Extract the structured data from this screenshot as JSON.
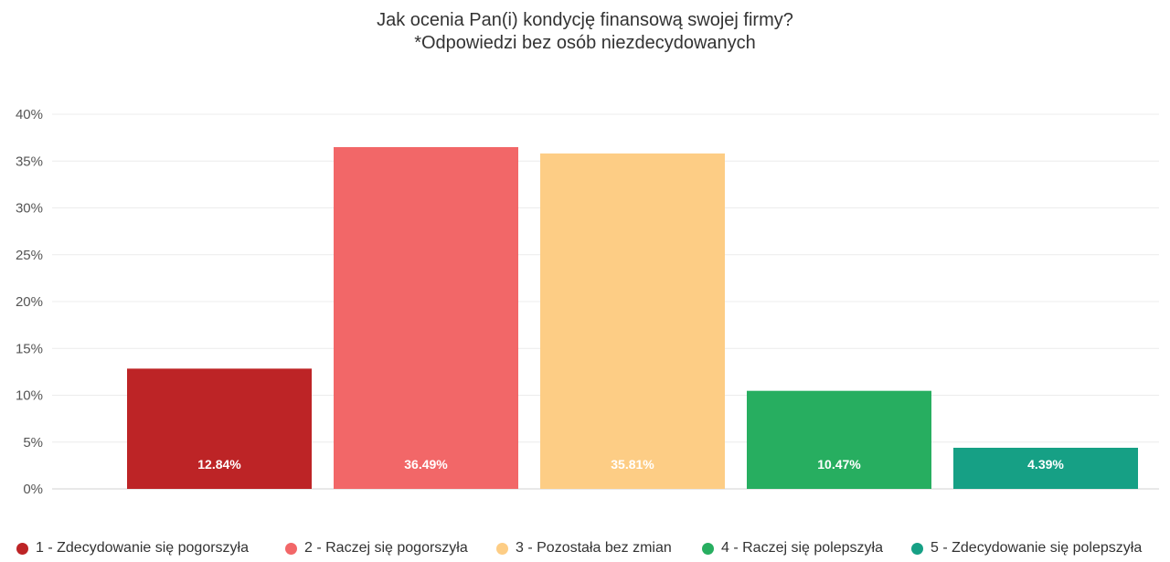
{
  "chart_data": {
    "type": "bar",
    "title": "Jak ocenia Pan(i) kondycję finansową swojej firmy?",
    "subtitle": "*Odpowiedzi bez osób niezdecydowanych",
    "categories": [
      "1 - Zdecydowanie się pogorszyła",
      "2 - Raczej się pogorszyła",
      "3 - Pozostała bez zmian",
      "4 - Raczej się polepszyła",
      "5 - Zdecydowanie się polepszyła"
    ],
    "values": [
      12.84,
      36.49,
      35.81,
      10.47,
      4.39
    ],
    "value_labels": [
      "12.84%",
      "36.49%",
      "35.81%",
      "10.47%",
      "4.39%"
    ],
    "colors": [
      "#bd2426",
      "#f26768",
      "#fdcd85",
      "#27ae60",
      "#16a085"
    ],
    "ylim": [
      0,
      40
    ],
    "y_ticks": [
      "0%",
      "5%",
      "10%",
      "15%",
      "20%",
      "25%",
      "30%",
      "35%",
      "40%"
    ],
    "grid": true,
    "legend_position": "bottom"
  }
}
